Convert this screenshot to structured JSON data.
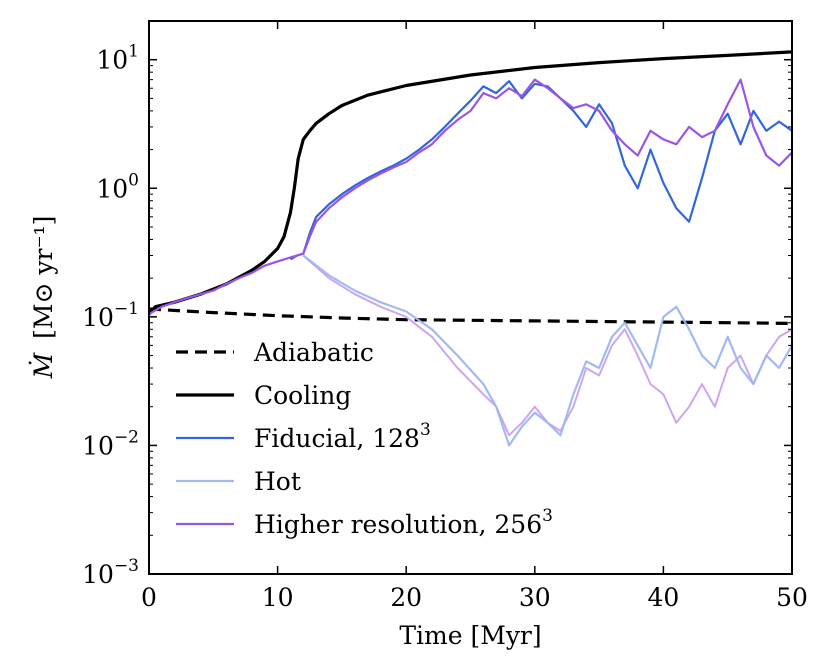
{
  "chart_data": {
    "type": "line",
    "xlabel": "Time [Myr]",
    "ylabel": "Ṁ [M⊙ yr⁻¹]",
    "ylabel_main": "Ṁ",
    "ylabel_units": "[M⊙ yr⁻¹]",
    "xlim": [
      0,
      50
    ],
    "ylim": [
      0.001,
      20
    ],
    "yscale": "log",
    "xticks": [
      0,
      10,
      20,
      30,
      40,
      50
    ],
    "xtick_labels": [
      "0",
      "10",
      "20",
      "30",
      "40",
      "50"
    ],
    "yticks": [
      {
        "value": 10,
        "base": "10",
        "exp": "1"
      },
      {
        "value": 1,
        "base": "10",
        "exp": "0"
      },
      {
        "value": 0.1,
        "base": "10",
        "exp": "−1"
      },
      {
        "value": 0.01,
        "base": "10",
        "exp": "−2"
      },
      {
        "value": 0.001,
        "base": "10",
        "exp": "−3"
      }
    ],
    "legend_position": "lower-left",
    "legend": [
      {
        "label": "Adiabatic",
        "series": "adiabatic"
      },
      {
        "label": "Cooling",
        "series": "cooling"
      },
      {
        "label": "Fiducial, 128",
        "sup": "3",
        "series": "fiducial"
      },
      {
        "label": "Hot",
        "series": "hot"
      },
      {
        "label": "Higher resolution, 256",
        "sup": "3",
        "series": "highres"
      }
    ],
    "series": [
      {
        "name": "Adiabatic",
        "key": "adiabatic",
        "color": "#000000",
        "dash": "12 7",
        "width": 3.2,
        "opacity": 1,
        "x": [
          0,
          5,
          10,
          15,
          20,
          25,
          30,
          35,
          40,
          45,
          50
        ],
        "y": [
          0.115,
          0.108,
          0.102,
          0.098,
          0.095,
          0.094,
          0.093,
          0.092,
          0.091,
          0.09,
          0.089
        ]
      },
      {
        "name": "Cooling",
        "key": "cooling",
        "color": "#000000",
        "dash": "",
        "width": 3.2,
        "opacity": 1,
        "x": [
          0,
          0.5,
          2,
          4,
          6,
          8,
          9,
          10,
          10.5,
          11,
          11.3,
          11.6,
          12,
          12.5,
          13,
          14,
          15,
          17,
          20,
          25,
          30,
          35,
          40,
          45,
          50
        ],
        "y": [
          0.105,
          0.12,
          0.13,
          0.15,
          0.18,
          0.23,
          0.27,
          0.34,
          0.42,
          0.65,
          1.0,
          1.7,
          2.4,
          2.8,
          3.2,
          3.8,
          4.4,
          5.3,
          6.3,
          7.6,
          8.7,
          9.5,
          10.2,
          10.8,
          11.5
        ]
      },
      {
        "name": "Higher resolution, 256³ (outflow)",
        "key": "highres_lower",
        "color": "#c79cf0",
        "dash": "",
        "width": 2,
        "opacity": 0.9,
        "x": [
          12,
          14,
          16,
          18,
          20,
          22,
          24,
          26,
          27,
          28,
          29,
          30,
          31,
          32,
          33,
          34,
          35,
          36,
          37,
          38,
          39,
          40,
          41,
          42,
          43,
          44,
          45,
          46,
          47,
          48,
          49,
          50
        ],
        "y": [
          0.3,
          0.2,
          0.15,
          0.12,
          0.1,
          0.07,
          0.04,
          0.025,
          0.02,
          0.012,
          0.015,
          0.02,
          0.015,
          0.013,
          0.02,
          0.04,
          0.035,
          0.06,
          0.08,
          0.05,
          0.03,
          0.025,
          0.015,
          0.02,
          0.03,
          0.02,
          0.04,
          0.05,
          0.03,
          0.05,
          0.07,
          0.08
        ]
      },
      {
        "name": "Hot",
        "key": "hot",
        "color": "#9db6f2",
        "dash": "",
        "width": 2.2,
        "opacity": 0.95,
        "x": [
          12,
          14,
          16,
          18,
          20,
          22,
          24,
          26,
          27,
          28,
          29,
          30,
          31,
          32,
          33,
          34,
          35,
          36,
          37,
          38,
          39,
          40,
          41,
          42,
          43,
          44,
          45,
          46,
          47,
          48,
          49,
          50
        ],
        "y": [
          0.3,
          0.21,
          0.16,
          0.13,
          0.11,
          0.08,
          0.05,
          0.03,
          0.02,
          0.01,
          0.014,
          0.018,
          0.015,
          0.012,
          0.025,
          0.045,
          0.04,
          0.07,
          0.09,
          0.06,
          0.04,
          0.1,
          0.12,
          0.08,
          0.05,
          0.04,
          0.07,
          0.04,
          0.03,
          0.05,
          0.04,
          0.06
        ]
      },
      {
        "name": "Fiducial, 128³",
        "key": "fiducial",
        "color": "#3366dd",
        "dash": "",
        "width": 2.2,
        "opacity": 1,
        "x": [
          11,
          11.5,
          12,
          12.5,
          13,
          14,
          15,
          16,
          17,
          18,
          19,
          20,
          21,
          22,
          23,
          24,
          25,
          26,
          27,
          28,
          29,
          30,
          31,
          32,
          33,
          34,
          35,
          36,
          37,
          38,
          39,
          40,
          41,
          42,
          43,
          44,
          45,
          46,
          47,
          48,
          49,
          50
        ],
        "y": [
          0.28,
          0.3,
          0.31,
          0.45,
          0.6,
          0.75,
          0.9,
          1.05,
          1.2,
          1.35,
          1.5,
          1.7,
          2.0,
          2.4,
          3.0,
          3.8,
          4.8,
          6.2,
          5.5,
          6.8,
          5.0,
          6.5,
          6.2,
          5.0,
          4.0,
          3.0,
          4.5,
          3.2,
          1.5,
          1.0,
          2.0,
          1.1,
          0.7,
          0.55,
          1.2,
          2.8,
          3.8,
          2.2,
          4.0,
          2.8,
          3.3,
          2.8
        ]
      },
      {
        "name": "Higher resolution, 256³",
        "key": "highres",
        "color": "#9a55e6",
        "dash": "",
        "width": 2.2,
        "opacity": 1,
        "x": [
          0,
          1,
          2,
          3,
          4,
          5,
          6,
          7,
          8,
          9,
          10,
          11,
          12,
          12.5,
          13,
          14,
          15,
          16,
          17,
          18,
          19,
          20,
          21,
          22,
          23,
          24,
          25,
          26,
          27,
          28,
          29,
          30,
          31,
          32,
          33,
          34,
          35,
          36,
          37,
          38,
          39,
          40,
          41,
          42,
          43,
          44,
          45,
          46,
          47,
          48,
          49,
          50
        ],
        "y": [
          0.105,
          0.12,
          0.13,
          0.14,
          0.15,
          0.16,
          0.18,
          0.2,
          0.22,
          0.25,
          0.27,
          0.29,
          0.31,
          0.42,
          0.55,
          0.7,
          0.85,
          1.0,
          1.15,
          1.3,
          1.45,
          1.6,
          1.9,
          2.2,
          2.8,
          3.4,
          4.0,
          5.5,
          5.0,
          6.0,
          5.2,
          7.0,
          6.0,
          5.0,
          4.2,
          4.5,
          4.0,
          2.8,
          2.2,
          1.8,
          2.8,
          2.4,
          2.2,
          3.0,
          2.5,
          2.8,
          4.5,
          7.0,
          3.0,
          1.8,
          1.5,
          1.9
        ]
      }
    ]
  }
}
